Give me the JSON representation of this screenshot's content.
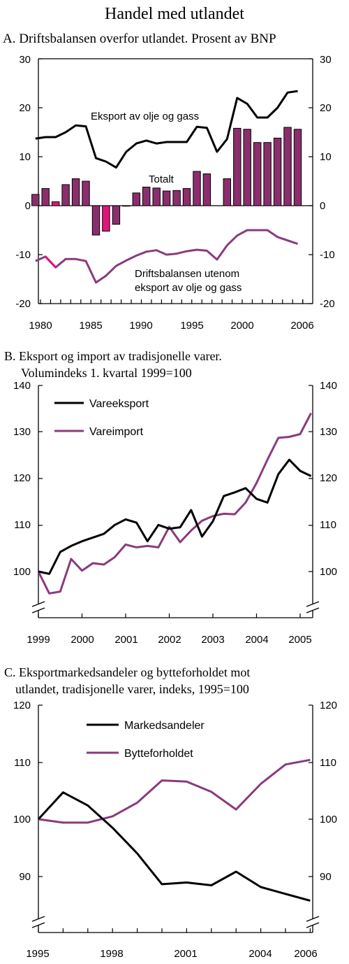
{
  "page_title": "Handel med utlandet",
  "colors": {
    "black_line": "#000000",
    "purple_line": "#8b3a7d",
    "bar_fill": "#8b2e6e",
    "bar_highlight": "#e0157a"
  },
  "panels": [
    {
      "id": "a",
      "heading": [
        "A.  Driftsbalansen overfor utlandet. Prosent av BNP"
      ],
      "y_ticks": [
        "30",
        "20",
        "10",
        "0",
        "-10",
        "-20"
      ],
      "x_ticks": [
        "1980",
        "1985",
        "1990",
        "1995",
        "2000",
        "2006"
      ],
      "annotations": [
        "Eksport av olje og gass",
        "Totalt",
        "Driftsbalansen utenom",
        "eksport av olje og gass"
      ]
    },
    {
      "id": "b",
      "heading": [
        "B. Eksport og import av tradisjonelle varer.",
        "Volumindeks 1. kvartal 1999=100"
      ],
      "y_ticks": [
        "140",
        "130",
        "120",
        "110",
        "100"
      ],
      "x_ticks": [
        "1999",
        "2000",
        "2001",
        "2002",
        "2003",
        "2004",
        "2005"
      ],
      "legend": [
        "Vareeksport",
        "Vareimport"
      ]
    },
    {
      "id": "c",
      "heading": [
        "C. Eksportmarkedsandeler og bytteforholdet mot",
        "utlandet, tradisjonelle varer, indeks, 1995=100"
      ],
      "y_ticks": [
        "120",
        "110",
        "100",
        "90"
      ],
      "x_ticks": [
        "1995",
        "1998",
        "2001",
        "2004",
        "2006"
      ],
      "legend": [
        "Markedsandeler",
        "Bytteforholdet"
      ]
    }
  ],
  "chart_data": [
    {
      "type": "bar",
      "title": "Driftsbalansen overfor utlandet. Prosent av BNP",
      "ylim": [
        -20,
        30
      ],
      "xlim": [
        1980,
        2006
      ],
      "grid": false,
      "categories": [
        1979.5,
        1980.5,
        1981.5,
        1982.5,
        1983.5,
        1984.5,
        1985.5,
        1986.5,
        1987.5,
        1988.5,
        1989.5,
        1990.5,
        1991.5,
        1992.5,
        1993.5,
        1994.5,
        1995.5,
        1996.5,
        1997.5,
        1998.5,
        1999.5,
        2000.5,
        2001.5,
        2002.5,
        2003.5,
        2004.5,
        2005.5
      ],
      "series": [
        {
          "name": "Totalt",
          "type": "bar",
          "values": [
            2.3,
            3.5,
            0.8,
            4.3,
            5.5,
            5.0,
            -6.0,
            -5.2,
            -3.8,
            -0.1,
            2.6,
            3.8,
            3.6,
            3.0,
            3.1,
            3.5,
            7.0,
            6.5,
            0.0,
            5.5,
            15.8,
            15.6,
            12.9,
            12.9,
            13.8,
            16.0,
            15.6
          ],
          "highlight_index": [
            2,
            7
          ]
        },
        {
          "name": "Eksport av olje og gass",
          "type": "line",
          "values": [
            13.7,
            14.0,
            14.0,
            15.0,
            16.4,
            16.2,
            9.7,
            9.0,
            7.8,
            11.0,
            12.7,
            13.3,
            12.7,
            13.0,
            13.0,
            13.0,
            16.1,
            15.9,
            11.0,
            13.6,
            22.0,
            20.8,
            18.0,
            18.0,
            20.0,
            23.1,
            23.4
          ]
        },
        {
          "name": "Driftsbalansen utenom eksport av olje og gass",
          "type": "line",
          "values": [
            -11.3,
            -10.4,
            -12.6,
            -10.9,
            -10.9,
            -11.3,
            -15.7,
            -14.3,
            -12.3,
            -11.2,
            -10.2,
            -9.4,
            -9.1,
            -10.0,
            -9.8,
            -9.3,
            -9.0,
            -9.2,
            -11.0,
            -8.1,
            -6.1,
            -5.0,
            -5.0,
            -5.0,
            -6.4,
            -7.1,
            -7.8
          ],
          "highlight_segment": [
            1,
            2
          ]
        }
      ]
    },
    {
      "type": "line",
      "title": "Eksport og import av tradisjonelle varer. Volumindeks 1. kvartal 1999=100",
      "ylim": [
        95,
        140
      ],
      "xlim": [
        1999,
        2005.3
      ],
      "grid": false,
      "legend": "top-left",
      "x": [
        1999.0,
        1999.25,
        1999.5,
        1999.75,
        2000.0,
        2000.25,
        2000.5,
        2000.75,
        2001.0,
        2001.25,
        2001.5,
        2001.75,
        2002.0,
        2002.25,
        2002.5,
        2002.75,
        2003.0,
        2003.25,
        2003.5,
        2003.75,
        2004.0,
        2004.25,
        2004.5,
        2004.75,
        2005.0,
        2005.25
      ],
      "series": [
        {
          "name": "Vareeksport",
          "values": [
            100.0,
            99.5,
            104.2,
            105.5,
            106.5,
            107.3,
            108.1,
            110.0,
            111.2,
            110.5,
            106.5,
            110.0,
            109.2,
            109.5,
            113.2,
            107.5,
            110.8,
            116.2,
            117.0,
            117.9,
            115.6,
            114.8,
            120.9,
            124.0,
            121.6,
            120.5
          ]
        },
        {
          "name": "Vareimport",
          "values": [
            100.0,
            95.3,
            95.7,
            102.7,
            100.2,
            101.8,
            101.5,
            103.1,
            105.8,
            105.2,
            105.5,
            105.2,
            109.6,
            106.3,
            108.8,
            110.9,
            111.9,
            112.4,
            112.3,
            114.8,
            119.0,
            124.0,
            128.7,
            128.9,
            129.5,
            134.0
          ]
        }
      ]
    },
    {
      "type": "line",
      "title": "Eksportmarkedsandeler og bytteforholdet mot utlandet, tradisjonelle varer, indeks, 1995=100",
      "ylim": [
        85,
        120
      ],
      "xlim": [
        1995,
        2006
      ],
      "grid": false,
      "legend": "top-center",
      "x": [
        1995,
        1996,
        1997,
        1998,
        1999,
        2000,
        2001,
        2002,
        2003,
        2004,
        2005,
        2006
      ],
      "series": [
        {
          "name": "Markedsandeler",
          "values": [
            100.0,
            104.7,
            102.4,
            98.5,
            94.0,
            88.6,
            88.9,
            88.4,
            90.8,
            88.1,
            86.9,
            85.7
          ]
        },
        {
          "name": "Bytteforholdet",
          "values": [
            100.0,
            99.4,
            99.4,
            100.5,
            102.9,
            106.8,
            106.6,
            104.8,
            101.7,
            106.2,
            109.6,
            110.4
          ]
        }
      ]
    }
  ]
}
